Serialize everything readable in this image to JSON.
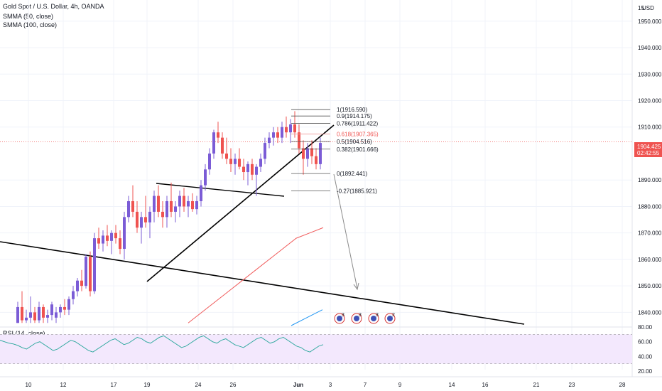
{
  "header": {
    "symbol_title": "Gold Spot / U.S. Dollar, 4h, OANDA",
    "indicator_1": "SMMA (50, close)",
    "indicator_2": "SMMA (100, close)",
    "currency_badge": "USD",
    "price_tag_value": "1904.425",
    "price_tag_timer": "02:42:55"
  },
  "rsi_panel": {
    "title": "RSI (14, close)",
    "y_ticks": [
      "80.00",
      "60.00",
      "40.00",
      "20.00"
    ]
  },
  "chart_data": {
    "type": "candlestick",
    "title": "Gold Spot / U.S. Dollar, 4h, OANDA",
    "price_axis": {
      "ticks": [
        "1950.000",
        "1940.000",
        "1930.000",
        "1920.000",
        "1910.000",
        "1890.000",
        "1880.000",
        "1870.000",
        "1860.000",
        "1850.000",
        "1840.000"
      ],
      "top_label_partial": "15",
      "ylim": [
        1835,
        1958
      ]
    },
    "x_axis_ticks": [
      "10",
      "12",
      "17",
      "19",
      "24",
      "26",
      "Jun",
      "3",
      "7",
      "9",
      "14",
      "16",
      "21",
      "23",
      "28"
    ],
    "last_price": 1904.425,
    "candles": [
      {
        "o": 1836,
        "h": 1844,
        "l": 1836,
        "c": 1842
      },
      {
        "o": 1842,
        "h": 1848,
        "l": 1836,
        "c": 1837
      },
      {
        "o": 1837,
        "h": 1841,
        "l": 1836,
        "c": 1838
      },
      {
        "o": 1838,
        "h": 1846,
        "l": 1836,
        "c": 1840
      },
      {
        "o": 1840,
        "h": 1842,
        "l": 1836,
        "c": 1837
      },
      {
        "o": 1837,
        "h": 1844,
        "l": 1836,
        "c": 1842
      },
      {
        "o": 1842,
        "h": 1843,
        "l": 1836,
        "c": 1838
      },
      {
        "o": 1838,
        "h": 1841,
        "l": 1836,
        "c": 1839
      },
      {
        "o": 1839,
        "h": 1844,
        "l": 1837,
        "c": 1843
      },
      {
        "o": 1838,
        "h": 1842,
        "l": 1836,
        "c": 1840
      },
      {
        "o": 1840,
        "h": 1843,
        "l": 1838,
        "c": 1842
      },
      {
        "o": 1842,
        "h": 1845,
        "l": 1839,
        "c": 1841
      },
      {
        "o": 1841,
        "h": 1846,
        "l": 1839,
        "c": 1845
      },
      {
        "o": 1845,
        "h": 1850,
        "l": 1843,
        "c": 1848
      },
      {
        "o": 1848,
        "h": 1853,
        "l": 1846,
        "c": 1852
      },
      {
        "o": 1852,
        "h": 1856,
        "l": 1848,
        "c": 1850
      },
      {
        "o": 1850,
        "h": 1862,
        "l": 1849,
        "c": 1861
      },
      {
        "o": 1861,
        "h": 1863,
        "l": 1846,
        "c": 1848
      },
      {
        "o": 1848,
        "h": 1870,
        "l": 1847,
        "c": 1868
      },
      {
        "o": 1868,
        "h": 1872,
        "l": 1864,
        "c": 1866
      },
      {
        "o": 1866,
        "h": 1871,
        "l": 1863,
        "c": 1869
      },
      {
        "o": 1869,
        "h": 1873,
        "l": 1865,
        "c": 1867
      },
      {
        "o": 1867,
        "h": 1871,
        "l": 1862,
        "c": 1870
      },
      {
        "o": 1870,
        "h": 1873,
        "l": 1866,
        "c": 1868
      },
      {
        "o": 1868,
        "h": 1871,
        "l": 1862,
        "c": 1864
      },
      {
        "o": 1864,
        "h": 1878,
        "l": 1860,
        "c": 1876
      },
      {
        "o": 1876,
        "h": 1884,
        "l": 1874,
        "c": 1882
      },
      {
        "o": 1882,
        "h": 1888,
        "l": 1876,
        "c": 1878
      },
      {
        "o": 1878,
        "h": 1882,
        "l": 1870,
        "c": 1872
      },
      {
        "o": 1872,
        "h": 1878,
        "l": 1866,
        "c": 1876
      },
      {
        "o": 1876,
        "h": 1884,
        "l": 1872,
        "c": 1874
      },
      {
        "o": 1874,
        "h": 1880,
        "l": 1868,
        "c": 1878
      },
      {
        "o": 1878,
        "h": 1886,
        "l": 1874,
        "c": 1884
      },
      {
        "o": 1884,
        "h": 1888,
        "l": 1876,
        "c": 1878
      },
      {
        "o": 1878,
        "h": 1882,
        "l": 1872,
        "c": 1876
      },
      {
        "o": 1876,
        "h": 1884,
        "l": 1872,
        "c": 1882
      },
      {
        "o": 1882,
        "h": 1889,
        "l": 1876,
        "c": 1878
      },
      {
        "o": 1878,
        "h": 1882,
        "l": 1874,
        "c": 1880
      },
      {
        "o": 1880,
        "h": 1886,
        "l": 1876,
        "c": 1884
      },
      {
        "o": 1884,
        "h": 1887,
        "l": 1878,
        "c": 1880
      },
      {
        "o": 1880,
        "h": 1884,
        "l": 1876,
        "c": 1882
      },
      {
        "o": 1882,
        "h": 1885,
        "l": 1878,
        "c": 1879
      },
      {
        "o": 1879,
        "h": 1884,
        "l": 1877,
        "c": 1882
      },
      {
        "o": 1882,
        "h": 1890,
        "l": 1880,
        "c": 1888
      },
      {
        "o": 1888,
        "h": 1896,
        "l": 1886,
        "c": 1894
      },
      {
        "o": 1894,
        "h": 1902,
        "l": 1892,
        "c": 1900
      },
      {
        "o": 1900,
        "h": 1909,
        "l": 1898,
        "c": 1908
      },
      {
        "o": 1908,
        "h": 1912,
        "l": 1904,
        "c": 1906
      },
      {
        "o": 1906,
        "h": 1908,
        "l": 1898,
        "c": 1900
      },
      {
        "o": 1900,
        "h": 1906,
        "l": 1896,
        "c": 1898
      },
      {
        "o": 1898,
        "h": 1902,
        "l": 1893,
        "c": 1896
      },
      {
        "o": 1896,
        "h": 1900,
        "l": 1892,
        "c": 1898
      },
      {
        "o": 1898,
        "h": 1902,
        "l": 1894,
        "c": 1895
      },
      {
        "o": 1895,
        "h": 1898,
        "l": 1890,
        "c": 1893
      },
      {
        "o": 1893,
        "h": 1897,
        "l": 1888,
        "c": 1896
      },
      {
        "o": 1896,
        "h": 1898,
        "l": 1890,
        "c": 1892
      },
      {
        "o": 1892,
        "h": 1896,
        "l": 1884,
        "c": 1895
      },
      {
        "o": 1895,
        "h": 1900,
        "l": 1893,
        "c": 1898
      },
      {
        "o": 1898,
        "h": 1906,
        "l": 1896,
        "c": 1904
      },
      {
        "o": 1904,
        "h": 1908,
        "l": 1902,
        "c": 1906
      },
      {
        "o": 1906,
        "h": 1910,
        "l": 1903,
        "c": 1908
      },
      {
        "o": 1908,
        "h": 1910,
        "l": 1904,
        "c": 1906
      },
      {
        "o": 1906,
        "h": 1912,
        "l": 1904,
        "c": 1910
      },
      {
        "o": 1910,
        "h": 1914,
        "l": 1906,
        "c": 1908
      },
      {
        "o": 1908,
        "h": 1913,
        "l": 1904,
        "c": 1911
      },
      {
        "o": 1911,
        "h": 1916,
        "l": 1906,
        "c": 1908
      },
      {
        "o": 1908,
        "h": 1911,
        "l": 1900,
        "c": 1902
      },
      {
        "o": 1902,
        "h": 1905,
        "l": 1892,
        "c": 1898
      },
      {
        "o": 1898,
        "h": 1904,
        "l": 1895,
        "c": 1902
      },
      {
        "o": 1902,
        "h": 1905,
        "l": 1896,
        "c": 1899
      },
      {
        "o": 1899,
        "h": 1902,
        "l": 1894,
        "c": 1896
      },
      {
        "o": 1896,
        "h": 1906,
        "l": 1894,
        "c": 1904
      }
    ],
    "smma_50": [
      [
        1832,
        1836
      ],
      [
        1836,
        1840
      ],
      [
        1840,
        1844
      ],
      [
        1844,
        1848
      ],
      [
        1848,
        1852
      ],
      [
        1852,
        1856
      ],
      [
        1856,
        1860
      ],
      [
        1860,
        1864
      ],
      [
        1864,
        1868
      ],
      [
        1868,
        1870
      ],
      [
        1870,
        1872
      ]
    ],
    "smma_100": [
      [
        1830,
        1835
      ],
      [
        1835,
        1838
      ],
      [
        1838,
        1841
      ]
    ],
    "fibonacci_levels": [
      {
        "label": "1(1916.590)",
        "value": 1916.59
      },
      {
        "label": "0.9(1914.175)",
        "value": 1914.175
      },
      {
        "label": "0.786(1911.422)",
        "value": 1911.422
      },
      {
        "label": "0.618(1907.365)",
        "value": 1907.365
      },
      {
        "label": "0.5(1904.516)",
        "value": 1904.516
      },
      {
        "label": "0.382(1901.666)",
        "value": 1901.666
      },
      {
        "label": "0(1892.441)",
        "value": 1892.441
      },
      {
        "label": "-0.27(1885.921)",
        "value": 1885.921
      }
    ],
    "rsi_values": [
      62,
      60,
      58,
      57,
      55,
      52,
      50,
      54,
      58,
      60,
      56,
      52,
      48,
      50,
      54,
      58,
      62,
      60,
      56,
      52,
      48,
      46,
      50,
      54,
      58,
      62,
      64,
      60,
      56,
      58,
      62,
      66,
      64,
      60,
      58,
      62,
      66,
      68,
      64,
      60,
      56,
      52,
      54,
      58,
      62,
      66,
      68,
      64,
      60,
      58,
      62,
      64,
      60,
      56,
      54,
      52,
      56,
      60,
      64,
      66,
      62,
      58,
      60,
      64,
      66,
      62,
      58,
      54,
      52,
      48,
      46,
      50,
      54,
      56
    ],
    "rsi_range": [
      20,
      80
    ],
    "event_icons": [
      "3",
      "3",
      "3",
      "2"
    ]
  }
}
